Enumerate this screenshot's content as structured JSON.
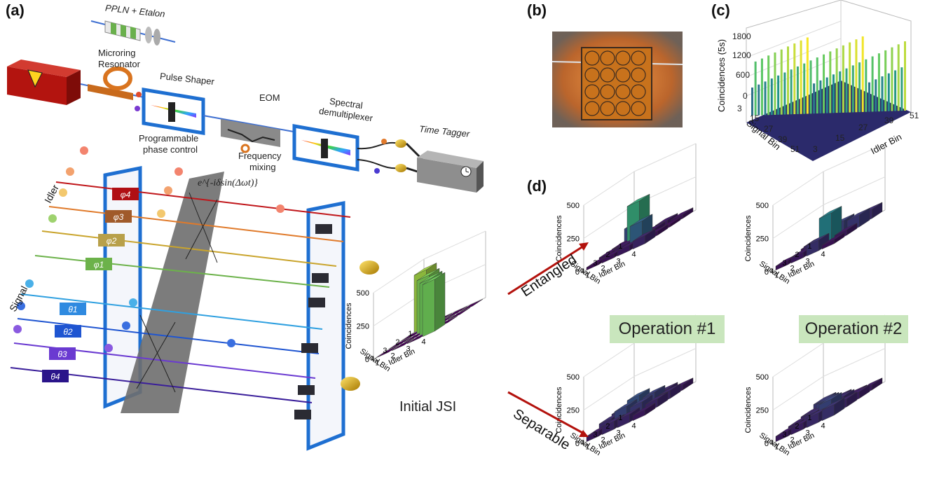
{
  "panel_labels": {
    "a": "(a)",
    "b": "(b)",
    "c": "(c)",
    "d": "(d)"
  },
  "setup": {
    "ppln": "PPLN + Etalon",
    "microring_1": "Microring",
    "microring_2": "Resonator",
    "pulse_shaper": "Pulse Shaper",
    "eom": "EOM",
    "spectral_1": "Spectral",
    "spectral_2": "demultiplexer",
    "time_tagger": "Time Tagger",
    "prog_1": "Programmable",
    "prog_2": "phase control",
    "freq_1": "Frequency",
    "freq_2": "mixing",
    "phase_formula": "e^{-iδsin(Δωt)}",
    "idler": "Idler",
    "signal": "Signal",
    "phi_labels": [
      "φ4",
      "φ3",
      "φ2",
      "φ1"
    ],
    "theta_labels": [
      "θ1",
      "θ2",
      "θ3",
      "θ4"
    ]
  },
  "panel_c": {
    "zlabel": "Coincidences (5s)",
    "z_ticks": [
      "1800",
      "1200",
      "600",
      "0"
    ],
    "signal_label": "Signal Bin",
    "idler_label": "Idler Bin",
    "signal_ticks": [
      "3",
      "15",
      "27",
      "39",
      "51"
    ],
    "idler_ticks": [
      "3",
      "15",
      "27",
      "39",
      "51"
    ]
  },
  "panel_d": {
    "initial_label": "Initial JSI",
    "entangled_label": "Entangled",
    "separable_label": "Separable",
    "op1": "Operation #1",
    "op2": "Operation #2",
    "zlabel": "Coincidences",
    "z_ticks": [
      "500",
      "250",
      "0"
    ],
    "signal_label": "Signal Bin",
    "idler_label": "Idler Bin",
    "bin_ticks": [
      "1",
      "2",
      "3",
      "4"
    ]
  },
  "chart_data": [
    {
      "type": "bar3d",
      "name": "initial_jsi",
      "xlabel": "Idler Bin",
      "ylabel": "Signal Bin",
      "zlabel": "Coincidences",
      "x": [
        1,
        2,
        3,
        4
      ],
      "y": [
        1,
        2,
        3,
        4
      ],
      "zlim": [
        0,
        500
      ],
      "values": [
        [
          430,
          0,
          0,
          0
        ],
        [
          0,
          400,
          0,
          0
        ],
        [
          0,
          0,
          390,
          0
        ],
        [
          0,
          0,
          0,
          390
        ]
      ]
    },
    {
      "type": "bar3d",
      "name": "op1_entangled",
      "xlabel": "Idler Bin",
      "ylabel": "Signal Bin",
      "zlabel": "Coincidences",
      "x": [
        1,
        2,
        3,
        4
      ],
      "y": [
        1,
        2,
        3,
        4
      ],
      "zlim": [
        0,
        500
      ],
      "values": [
        [
          120,
          20,
          40,
          30
        ],
        [
          30,
          300,
          40,
          20
        ],
        [
          30,
          40,
          160,
          30
        ],
        [
          20,
          30,
          40,
          60
        ]
      ]
    },
    {
      "type": "bar3d",
      "name": "op2_entangled",
      "xlabel": "Idler Bin",
      "ylabel": "Signal Bin",
      "zlabel": "Coincidences",
      "x": [
        1,
        2,
        3,
        4
      ],
      "y": [
        1,
        2,
        3,
        4
      ],
      "zlim": [
        0,
        500
      ],
      "values": [
        [
          20,
          30,
          40,
          70
        ],
        [
          30,
          40,
          100,
          90
        ],
        [
          20,
          60,
          220,
          40
        ],
        [
          30,
          40,
          80,
          30
        ]
      ]
    },
    {
      "type": "bar3d",
      "name": "op1_separable",
      "xlabel": "Idler Bin",
      "ylabel": "Signal Bin",
      "zlabel": "Coincidences",
      "x": [
        1,
        2,
        3,
        4
      ],
      "y": [
        1,
        2,
        3,
        4
      ],
      "zlim": [
        0,
        500
      ],
      "values": [
        [
          60,
          70,
          60,
          40
        ],
        [
          80,
          130,
          100,
          60
        ],
        [
          70,
          110,
          90,
          60
        ],
        [
          40,
          60,
          60,
          40
        ]
      ]
    },
    {
      "type": "bar3d",
      "name": "op2_separable",
      "xlabel": "Idler Bin",
      "ylabel": "Signal Bin",
      "zlabel": "Coincidences",
      "x": [
        1,
        2,
        3,
        4
      ],
      "y": [
        1,
        2,
        3,
        4
      ],
      "zlim": [
        0,
        500
      ],
      "values": [
        [
          90,
          60,
          40,
          40
        ],
        [
          60,
          100,
          70,
          50
        ],
        [
          50,
          70,
          110,
          60
        ],
        [
          40,
          50,
          70,
          80
        ]
      ]
    },
    {
      "type": "bar3d",
      "name": "measured_jsi",
      "xlabel": "Idler Bin",
      "ylabel": "Signal Bin",
      "zlabel": "Coincidences (5s)",
      "x_range": [
        3,
        51
      ],
      "y_range": [
        3,
        51
      ],
      "zlim": [
        0,
        1800
      ],
      "diagonal_peak_range": [
        600,
        1800
      ]
    }
  ]
}
